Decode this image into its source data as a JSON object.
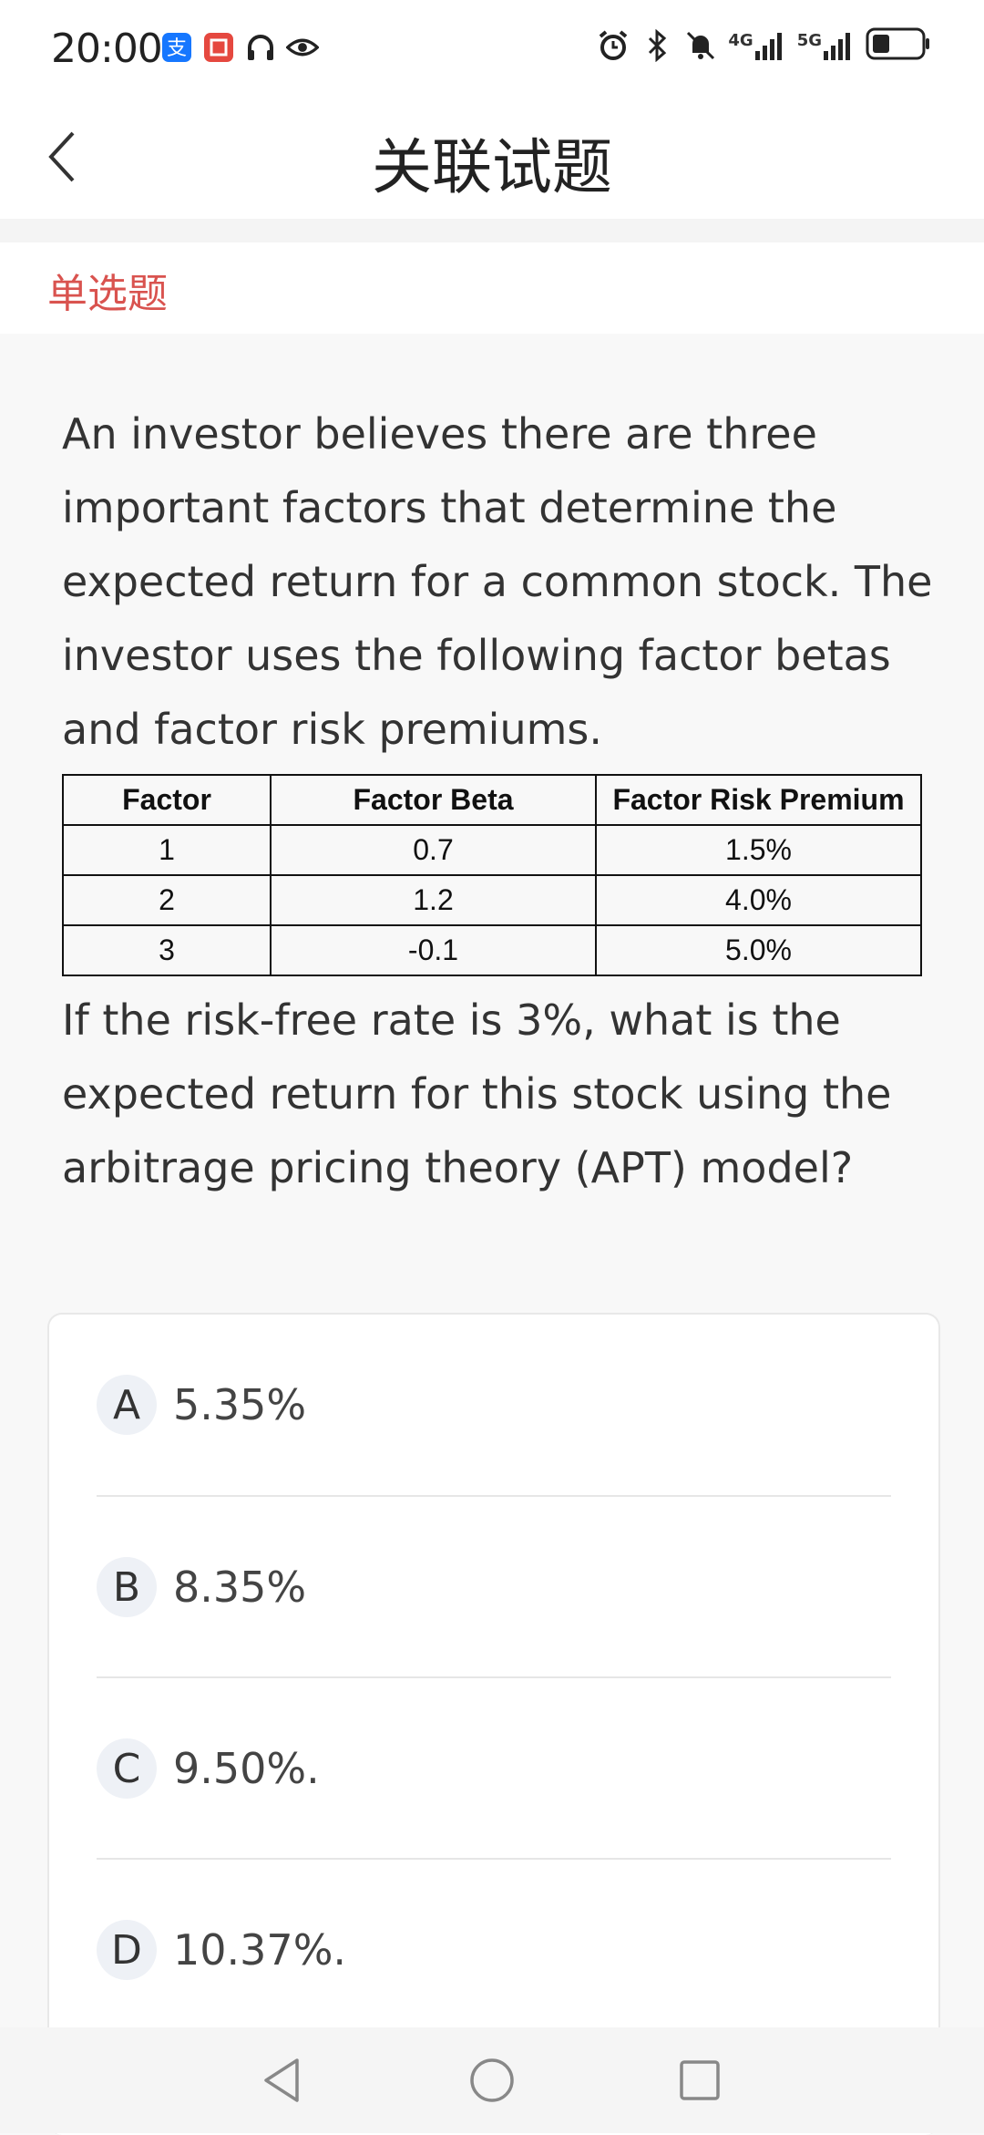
{
  "status_bar": {
    "time": "20:00",
    "left_icons": [
      "alipay-icon",
      "app-icon",
      "headphones-icon",
      "eye-icon"
    ],
    "right_icons": [
      "alarm-icon",
      "bluetooth-icon",
      "mute-icon",
      "4g-signal-icon",
      "5g-signal-icon",
      "battery-icon"
    ],
    "network_1": "4G",
    "network_2": "5G"
  },
  "header": {
    "title": "关联试题",
    "back_icon": "chevron-left-icon"
  },
  "question_type": "单选题",
  "question": {
    "intro": "An investor believes there are three important factors that determine the expected return for a common stock. The investor uses the following factor betas and factor risk premiums.",
    "table": {
      "headers": [
        "Factor",
        "Factor Beta",
        "Factor Risk Premium"
      ],
      "rows": [
        [
          "1",
          "0.7",
          "1.5%"
        ],
        [
          "2",
          "1.2",
          "4.0%"
        ],
        [
          "3",
          "-0.1",
          "5.0%"
        ]
      ]
    },
    "prompt": "If the risk-free rate is 3%, what is the expected return for this stock using the arbitrage pricing theory (APT) model?"
  },
  "options": [
    {
      "letter": "A",
      "text": "5.35%"
    },
    {
      "letter": "B",
      "text": "8.35%"
    },
    {
      "letter": "C",
      "text": "9.50%."
    },
    {
      "letter": "D",
      "text": "10.37%."
    }
  ],
  "system_nav": {
    "back_icon": "triangle-back-icon",
    "home_icon": "circle-home-icon",
    "recents_icon": "square-recents-icon"
  }
}
